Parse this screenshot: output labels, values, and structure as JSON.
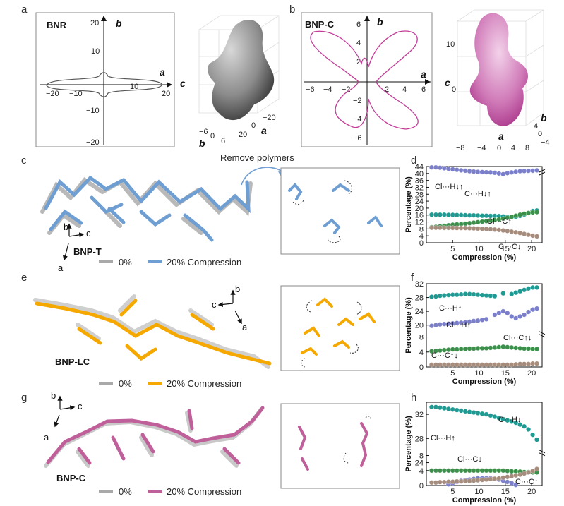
{
  "panels": {
    "a": {
      "letter": "a",
      "box_title": "BNR",
      "axis_a": "a",
      "axis_b": "b",
      "axis_c": "c",
      "x_ticks": [
        "−20",
        "−10",
        "10",
        "20"
      ],
      "y_ticks": [
        "20",
        "10",
        "−10",
        "−20"
      ],
      "ticks3d_x": [
        "−20",
        "0",
        "20"
      ],
      "ticks3d_y": [
        "−6",
        "0",
        "6"
      ]
    },
    "b": {
      "letter": "b",
      "box_title": "BNP-C",
      "axis_a": "a",
      "axis_b": "b",
      "axis_c": "c",
      "x_ticks": [
        "−6",
        "−4",
        "−2",
        "2",
        "4",
        "6"
      ],
      "y_ticks": [
        "6",
        "4",
        "2",
        "−2",
        "−4",
        "−6"
      ],
      "ticks3d_x": [
        "−8",
        "−4",
        "0",
        "4",
        "8"
      ],
      "ticks3d_y": [
        "4",
        "0",
        "−4"
      ],
      "ticks3d_z": [
        "10",
        "0"
      ]
    },
    "c": {
      "letter": "c",
      "label": "BNP-T",
      "ax1": "b",
      "ax2": "c",
      "ax3": "a",
      "callout": "Remove polymers"
    },
    "e": {
      "letter": "e",
      "label": "BNP-LC",
      "ax1": "c",
      "ax2": "b",
      "ax3": "a"
    },
    "g": {
      "letter": "g",
      "label": "BNP-C",
      "ax1": "b",
      "ax2": "c",
      "ax3": "a"
    }
  },
  "legends": {
    "c": {
      "item1": "0%",
      "item2": "20% Compression",
      "color1": "#a9a9a9",
      "color2": "#6e9ed2"
    },
    "e": {
      "item1": "0%",
      "item2": "20% Compression",
      "color1": "#a9a9a9",
      "color2": "#f5a800"
    },
    "g": {
      "item1": "0%",
      "item2": "20% Compression",
      "color1": "#a9a9a9",
      "color2": "#c0609a"
    }
  },
  "colors": {
    "clh": "#7b7fca",
    "ch": "#1f9a93",
    "clc": "#3c8f4a",
    "cc": "#a58c7c",
    "bnp_c": "#c23c97"
  },
  "chart_data": [
    {
      "type": "scatter",
      "panel": "d",
      "ylabel": "Percentage (%)",
      "xlabel": "Compression (%)",
      "x_ticks": [
        5,
        10,
        15,
        20
      ],
      "y_ticks": [
        0,
        4,
        8,
        12,
        16,
        20,
        24,
        28,
        32,
        36,
        40,
        44
      ],
      "labels": {
        "clh": "Cl···H",
        "ch": "C···H",
        "clc": "Cl···C",
        "cc": "C···C"
      },
      "arrows": {
        "clh": "↓↑",
        "ch": "↓↑",
        "clc": "↑",
        "cc": "↓"
      },
      "series": [
        {
          "key": "clh",
          "values": [
            43.5,
            43.5,
            43.3,
            43,
            42.7,
            42.4,
            42.1,
            41.8,
            41.6,
            41.3,
            41.1,
            40.9,
            40.8,
            40.7,
            40.6,
            40.4,
            40.0,
            39.6,
            40.2,
            40.6,
            41.0,
            41.3,
            41.4,
            41.5,
            41.6,
            41.8
          ]
        },
        {
          "key": "ch",
          "values": [
            16.2,
            16.2,
            16.2,
            16.2,
            16.1,
            16.1,
            16,
            16,
            15.9,
            15.8,
            15.8,
            15.7,
            15.6,
            15.6,
            15.5,
            15.5,
            15.4,
            15.2,
            14.9,
            14.8,
            15.0,
            15.5,
            16.3,
            17.2,
            18.3,
            18.6
          ]
        },
        {
          "key": "clc",
          "values": [
            9.0,
            9.2,
            9.5,
            9.8,
            10.1,
            10.4,
            10.6,
            10.8,
            11.0,
            11.3,
            11.6,
            11.9,
            12.2,
            12.5,
            12.8,
            13.1,
            13.5,
            13.9,
            14.4,
            15.0,
            15.6,
            16.2,
            16.8,
            17.2,
            17.5,
            17.7
          ]
        },
        {
          "key": "cc",
          "values": [
            8.7,
            8.7,
            8.7,
            8.6,
            8.6,
            8.6,
            8.5,
            8.5,
            8.5,
            8.4,
            8.3,
            8.2,
            8.1,
            8.0,
            7.8,
            7.6,
            7.4,
            7.1,
            6.8,
            6.4,
            6.0,
            5.6,
            5.1,
            4.6,
            4.1,
            3.7
          ]
        }
      ]
    },
    {
      "type": "scatter",
      "panel": "f",
      "ylabel": "Percentage (%)",
      "xlabel": "Compression (%)",
      "x_ticks": [
        5,
        10,
        15,
        20
      ],
      "y_ticks": [
        0,
        4,
        8,
        20,
        24,
        28,
        32
      ],
      "labels": {
        "clh": "Cl···H",
        "ch": "C···H",
        "clc": "Cl···C",
        "cc": "C···C"
      },
      "arrows": {
        "clh": "↑",
        "ch": "↑",
        "clc": "↑↓",
        "cc": "↑↓"
      },
      "series": [
        {
          "key": "ch",
          "values": [
            28.2,
            28.3,
            28.5,
            28.6,
            28.7,
            28.8,
            28.8,
            28.9,
            29.0,
            29.0,
            28.9,
            28.8,
            28.7,
            28.6,
            28.5,
            28.4,
            null,
            29.2,
            null,
            29.0,
            29.4,
            29.8,
            30.2,
            30.6,
            30.9,
            30.9
          ]
        },
        {
          "key": "clh",
          "values": [
            19.8,
            20.0,
            20.2,
            20.3,
            20.4,
            20.5,
            20.6,
            20.7,
            20.8,
            21.0,
            21.2,
            21.3,
            21.5,
            21.7,
            null,
            23.0,
            23.5,
            24.0,
            23.5,
            22.5,
            22.0,
            22.5,
            23.0,
            23.8,
            24.5,
            24.8
          ]
        },
        {
          "key": "clc",
          "values": [
            4.2,
            4.3,
            4.4,
            4.5,
            4.6,
            4.7,
            4.7,
            4.8,
            4.8,
            4.9,
            4.9,
            5.0,
            5.0,
            5.0,
            5.1,
            5.2,
            5.3,
            5.4,
            5.3,
            5.2,
            5.1,
            5.0,
            4.9,
            4.9,
            4.8,
            4.8
          ]
        },
        {
          "key": "cc",
          "values": [
            0.6,
            0.6,
            0.6,
            0.6,
            0.6,
            0.6,
            0.6,
            0.6,
            0.6,
            0.6,
            0.6,
            0.6,
            0.6,
            0.6,
            0.6,
            0.6,
            0.6,
            0.6,
            0.6,
            0.6,
            0.7,
            0.8,
            0.8,
            0.8,
            0.9,
            0.9
          ]
        }
      ]
    },
    {
      "type": "scatter",
      "panel": "h",
      "ylabel": "Percentage (%)",
      "xlabel": "Compression (%)",
      "x_ticks": [
        5,
        10,
        15,
        20
      ],
      "y_ticks": [
        0,
        4,
        8,
        20,
        24,
        28,
        32
      ],
      "labels": {
        "clh": "Cl···H",
        "ch": "C···H",
        "clc": "Cl···C",
        "cc": "C···C"
      },
      "arrows": {
        "clh": "↑",
        "ch": "↓",
        "clc": "↓",
        "cc": "↑"
      },
      "series": [
        {
          "key": "ch",
          "values": [
            33.2,
            33.2,
            33.1,
            33.0,
            32.9,
            32.8,
            32.7,
            32.6,
            32.5,
            32.4,
            32.3,
            32.2,
            32.1,
            32.0,
            31.8,
            31.6,
            31.4,
            31.2,
            31.0,
            30.8,
            30.6,
            30.3,
            30.0,
            29.5,
            28.6,
            27.8
          ]
        },
        {
          "key": "clh",
          "values": [
            19.6,
            19.8,
            20.0,
            20.2,
            20.4,
            20.6,
            20.8,
            21.0,
            21.1,
            21.2,
            21.3,
            21.4,
            21.4,
            21.4,
            21.4,
            21.3,
            21.2,
            21.0,
            20.8,
            20.6,
            20.3,
            20.0,
            19.8,
            19.6,
            19.4,
            19.2
          ]
        },
        {
          "key": "clc",
          "values": [
            4.0,
            4.0,
            4.0,
            4.0,
            4.0,
            4.0,
            4.0,
            4.0,
            4.0,
            4.0,
            4.0,
            4.0,
            4.0,
            4.0,
            4.0,
            4.0,
            4.0,
            4.0,
            3.9,
            3.8,
            3.8,
            3.7,
            3.6,
            3.6,
            3.5,
            3.5
          ]
        },
        {
          "key": "cc",
          "values": [
            0.8,
            0.8,
            0.9,
            0.9,
            1.0,
            1.0,
            1.1,
            1.1,
            1.2,
            1.2,
            1.3,
            1.4,
            1.5,
            1.6,
            1.7,
            1.8,
            1.9,
            2.1,
            2.3,
            2.5,
            2.7,
            2.9,
            3.2,
            3.5,
            3.9,
            4.4
          ]
        }
      ]
    }
  ]
}
